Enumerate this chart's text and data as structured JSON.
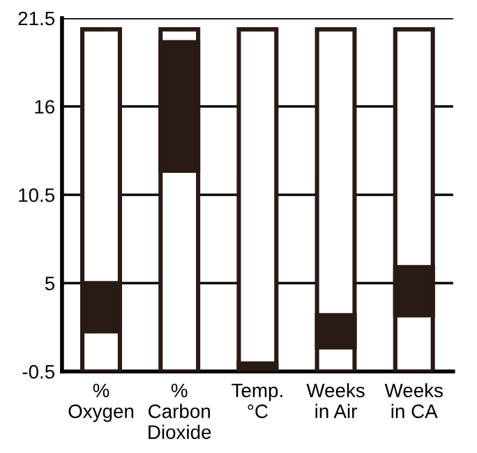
{
  "chart_data": {
    "type": "bar",
    "categories": [
      "%\nOxygen",
      "%\nCarbon\nDioxide",
      "Temp.\n°C",
      "Weeks\nin Air",
      "Weeks\nin CA"
    ],
    "series": [
      {
        "color": "#ffffff",
        "base": [
          -0.5,
          -0.5,
          -0.5,
          -0.5,
          -0.5
        ],
        "values": [
          21.3,
          21.3,
          21.3,
          21.3,
          21.3
        ]
      },
      {
        "color": "#2a1a14",
        "base": [
          2,
          12,
          -0.5,
          1,
          3
        ],
        "values": [
          3,
          8,
          0.5,
          2,
          3
        ]
      }
    ],
    "ylim": [
      -0.5,
      21.5
    ],
    "yticks": [
      -0.5,
      5,
      10.5,
      16,
      21.5
    ],
    "grid": "y",
    "legend": false
  }
}
